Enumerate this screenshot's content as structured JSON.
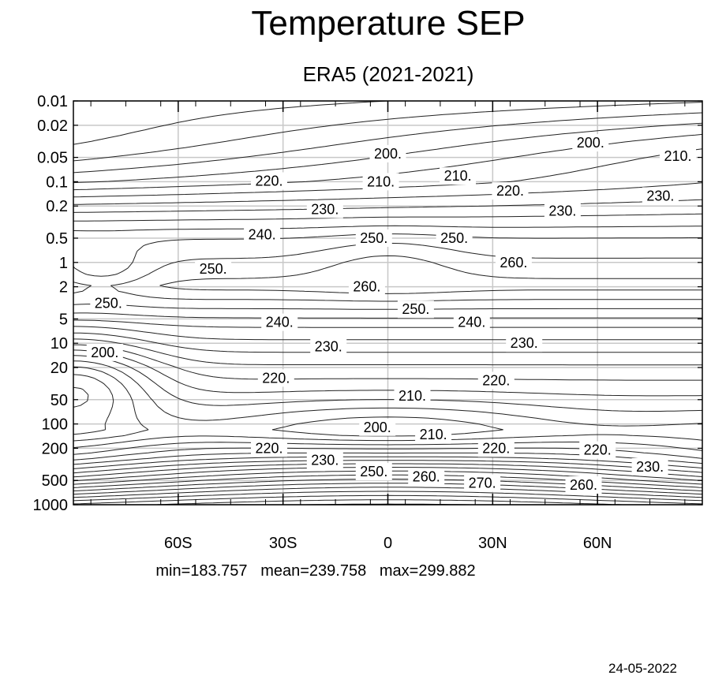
{
  "chart_data": {
    "type": "contour",
    "title": "Temperature SEP",
    "subtitle": "ERA5 (2021-2021)",
    "xlabel": "",
    "ylabel": "",
    "x_ticks": [
      {
        "value": -60,
        "label": "60S"
      },
      {
        "value": -30,
        "label": "30S"
      },
      {
        "value": 0,
        "label": "0"
      },
      {
        "value": 30,
        "label": "30N"
      },
      {
        "value": 60,
        "label": "60N"
      }
    ],
    "xlim": [
      -90,
      90
    ],
    "y_scale": "log",
    "y_reversed": true,
    "y_ticks": [
      0.01,
      0.02,
      0.05,
      0.1,
      0.2,
      0.5,
      1,
      2,
      5,
      10,
      20,
      50,
      100,
      200,
      500,
      1000
    ],
    "y_tick_labels": [
      "0.01",
      "0.02",
      "0.05",
      "0.1",
      "0.2",
      "0.5",
      "1",
      "2",
      "5",
      "10",
      "20",
      "50",
      "100",
      "200",
      "500",
      "1000"
    ],
    "ylim": [
      1000,
      0.01
    ],
    "grid": true,
    "contour_interval": 5,
    "contour_labels": [
      {
        "text": "200.",
        "lat": 0,
        "p": 0.045
      },
      {
        "text": "200.",
        "lat": 58,
        "p": 0.033
      },
      {
        "text": "210.",
        "lat": 83,
        "p": 0.048
      },
      {
        "text": "220.",
        "lat": -34,
        "p": 0.098
      },
      {
        "text": "210.",
        "lat": -2,
        "p": 0.1
      },
      {
        "text": "210.",
        "lat": 20,
        "p": 0.085
      },
      {
        "text": "220.",
        "lat": 35,
        "p": 0.13
      },
      {
        "text": "230.",
        "lat": 78,
        "p": 0.15
      },
      {
        "text": "230.",
        "lat": -18,
        "p": 0.22
      },
      {
        "text": "230.",
        "lat": 50,
        "p": 0.23
      },
      {
        "text": "240.",
        "lat": -36,
        "p": 0.45
      },
      {
        "text": "250.",
        "lat": -4,
        "p": 0.5
      },
      {
        "text": "250.",
        "lat": 19,
        "p": 0.5
      },
      {
        "text": "260.",
        "lat": 36,
        "p": 1.0
      },
      {
        "text": "250.",
        "lat": -50,
        "p": 1.2
      },
      {
        "text": "250.",
        "lat": -80,
        "p": 3.2
      },
      {
        "text": "260.",
        "lat": -6,
        "p": 2.0
      },
      {
        "text": "250.",
        "lat": 8,
        "p": 3.8
      },
      {
        "text": "240.",
        "lat": -31,
        "p": 5.5
      },
      {
        "text": "240.",
        "lat": 24,
        "p": 5.5
      },
      {
        "text": "230.",
        "lat": -17,
        "p": 11
      },
      {
        "text": "230.",
        "lat": 39,
        "p": 10
      },
      {
        "text": "200.",
        "lat": -81,
        "p": 13
      },
      {
        "text": "220.",
        "lat": -32,
        "p": 27
      },
      {
        "text": "220.",
        "lat": 31,
        "p": 29
      },
      {
        "text": "210.",
        "lat": 7,
        "p": 45
      },
      {
        "text": "200.",
        "lat": -3,
        "p": 110
      },
      {
        "text": "210.",
        "lat": 13,
        "p": 135
      },
      {
        "text": "220.",
        "lat": -34,
        "p": 200
      },
      {
        "text": "220.",
        "lat": 31,
        "p": 200
      },
      {
        "text": "220.",
        "lat": 60,
        "p": 210
      },
      {
        "text": "230.",
        "lat": -18,
        "p": 280
      },
      {
        "text": "250.",
        "lat": -4,
        "p": 390
      },
      {
        "text": "260.",
        "lat": 11,
        "p": 450
      },
      {
        "text": "270.",
        "lat": 27,
        "p": 540
      },
      {
        "text": "260.",
        "lat": 56,
        "p": 570
      },
      {
        "text": "230.",
        "lat": 75,
        "p": 340
      }
    ],
    "stats_text": "min=183.757   mean=239.758   max=299.882"
  },
  "footer": {
    "date": "24-05-2022"
  }
}
